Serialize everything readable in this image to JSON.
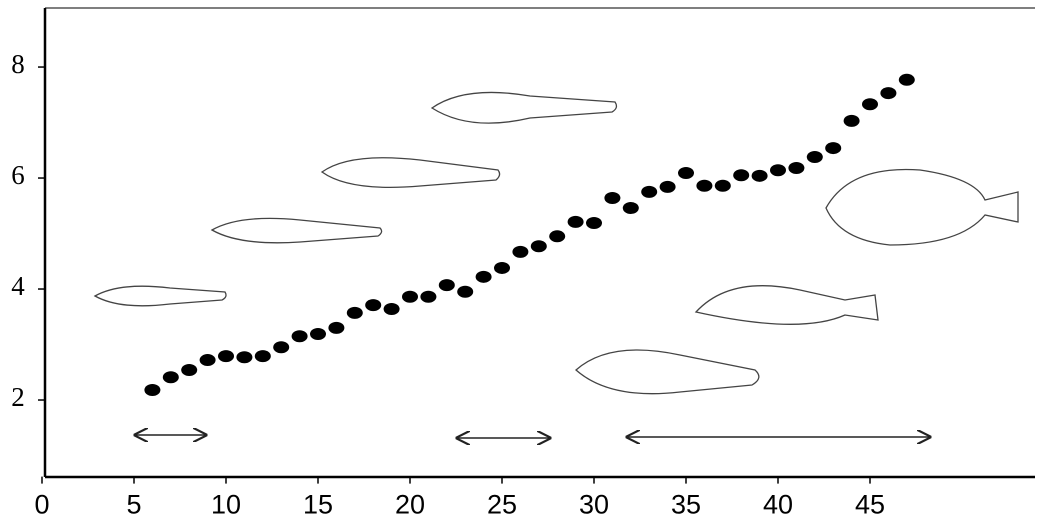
{
  "chart_data": {
    "type": "scatter",
    "x": [
      6,
      7,
      8,
      9,
      10,
      11,
      12,
      13,
      14,
      15,
      16,
      17,
      18,
      19,
      20,
      21,
      22,
      23,
      24,
      25,
      26,
      27,
      28,
      29,
      30,
      31,
      32,
      33,
      34,
      35,
      36,
      37,
      38,
      39,
      40,
      41,
      42,
      43,
      44,
      45,
      46,
      47
    ],
    "values": [
      2.18,
      2.41,
      2.54,
      2.72,
      2.79,
      2.77,
      2.79,
      2.95,
      3.15,
      3.19,
      3.3,
      3.57,
      3.71,
      3.64,
      3.86,
      3.86,
      4.07,
      3.95,
      4.22,
      4.38,
      4.67,
      4.77,
      4.95,
      5.21,
      5.19,
      5.64,
      5.46,
      5.75,
      5.84,
      6.09,
      5.86,
      5.86,
      6.05,
      6.04,
      6.14,
      6.18,
      6.38,
      6.54,
      7.03,
      7.33,
      7.53,
      7.77
    ],
    "color": "#000000",
    "xlim": [
      0,
      54
    ],
    "xticks": [
      0,
      5,
      10,
      15,
      20,
      25,
      30,
      35,
      40,
      45
    ],
    "ylim": [
      0.62,
      9.1
    ],
    "yticks": [
      2,
      4,
      6,
      8
    ]
  }
}
